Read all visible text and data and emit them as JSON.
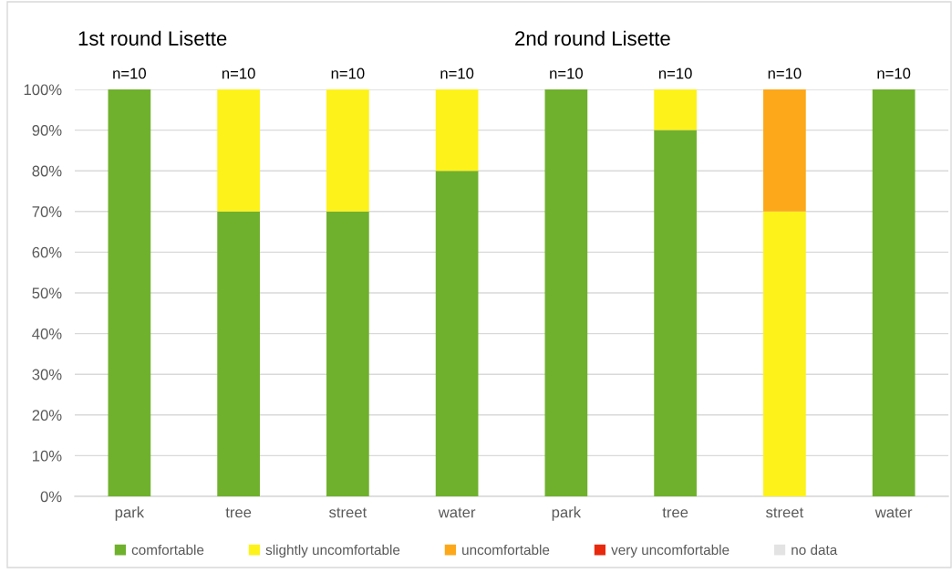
{
  "chart_data": {
    "type": "bar",
    "stacked": true,
    "categories": [
      "park",
      "tree",
      "street",
      "water",
      "park",
      "tree",
      "street",
      "water"
    ],
    "series": [
      {
        "name": "comfortable",
        "color": "#6fb12c",
        "values": [
          100,
          70,
          70,
          80,
          100,
          90,
          0,
          100
        ]
      },
      {
        "name": "slightly uncomfortable",
        "color": "#fdf21a",
        "values": [
          0,
          30,
          30,
          20,
          0,
          10,
          70,
          0
        ]
      },
      {
        "name": "uncomfortable",
        "color": "#fca81a",
        "values": [
          0,
          0,
          0,
          0,
          0,
          0,
          30,
          0
        ]
      },
      {
        "name": "very uncomfortable",
        "color": "#e8290e",
        "values": [
          0,
          0,
          0,
          0,
          0,
          0,
          0,
          0
        ]
      },
      {
        "name": "no data",
        "color": "#e3e3e3",
        "values": [
          0,
          0,
          0,
          0,
          0,
          0,
          0,
          0
        ]
      }
    ],
    "ylim": [
      0,
      100
    ],
    "yticks": [
      {
        "value": 0,
        "label": "0%"
      },
      {
        "value": 10,
        "label": "10%"
      },
      {
        "value": 20,
        "label": "20%"
      },
      {
        "value": 30,
        "label": "30%"
      },
      {
        "value": 40,
        "label": "40%"
      },
      {
        "value": 50,
        "label": "50%"
      },
      {
        "value": 60,
        "label": "60%"
      },
      {
        "value": 70,
        "label": "70%"
      },
      {
        "value": 80,
        "label": "80%"
      },
      {
        "value": 90,
        "label": "90%"
      },
      {
        "value": 100,
        "label": "100%"
      }
    ],
    "grid": "y",
    "legend": "bottom",
    "annotations": [
      "1st round Lisette",
      "2nd round Lisette",
      "n=10",
      "n=10",
      "n=10",
      "n=10",
      "n=10",
      "n=10",
      "n=10",
      "n=10"
    ]
  }
}
